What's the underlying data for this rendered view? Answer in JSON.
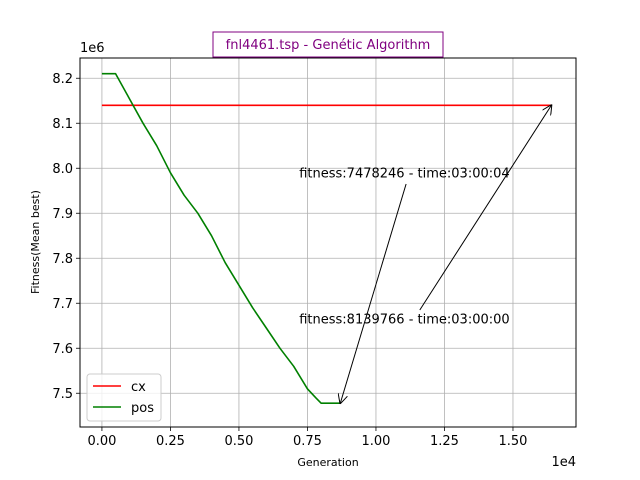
{
  "chart_data": {
    "type": "line",
    "title": "fnl4461.tsp - Genétic Algorithm",
    "title_color": "#800080",
    "xlabel": "Generation",
    "ylabel": "Fitness(Mean best)",
    "x_multiplier_label": "1e4",
    "y_multiplier_label": "1e6",
    "xlim": [
      -0.08,
      1.73
    ],
    "ylim": [
      7.425,
      8.245
    ],
    "x_ticks": [
      0.0,
      0.25,
      0.5,
      0.75,
      1.0,
      1.25,
      1.5
    ],
    "x_tick_labels": [
      "0.00",
      "0.25",
      "0.50",
      "0.75",
      "1.00",
      "1.25",
      "1.50"
    ],
    "y_ticks": [
      7.5,
      7.6,
      7.7,
      7.8,
      7.9,
      8.0,
      8.1,
      8.2
    ],
    "y_tick_labels": [
      "7.5",
      "7.6",
      "7.7",
      "7.8",
      "7.9",
      "8.0",
      "8.1",
      "8.2"
    ],
    "grid": true,
    "legend_position": "lower-left",
    "series": [
      {
        "name": "cx",
        "color": "#ff0000",
        "x": [
          0.0,
          1.64
        ],
        "y": [
          8.1398,
          8.1398
        ]
      },
      {
        "name": "pos",
        "color": "#008000",
        "x": [
          0.0,
          0.05,
          0.1,
          0.15,
          0.2,
          0.25,
          0.3,
          0.35,
          0.4,
          0.45,
          0.5,
          0.55,
          0.6,
          0.65,
          0.7,
          0.75,
          0.78,
          0.8,
          0.87
        ],
        "y": [
          8.21,
          8.21,
          8.155,
          8.1,
          8.05,
          7.99,
          7.94,
          7.9,
          7.85,
          7.79,
          7.74,
          7.69,
          7.645,
          7.6,
          7.56,
          7.51,
          7.49,
          7.478,
          7.478
        ]
      }
    ],
    "annotations": [
      {
        "text": "fitness:7478246 - time:03:00:04",
        "text_at": [
          0.72,
          7.98
        ],
        "arrow_from": [
          1.11,
          7.965
        ],
        "arrow_to": [
          0.87,
          7.478
        ]
      },
      {
        "text": "fitness:8139766 - time:03:00:00",
        "text_at": [
          0.72,
          7.655
        ],
        "arrow_from": [
          1.16,
          7.685
        ],
        "arrow_to": [
          1.64,
          8.1398
        ]
      }
    ]
  }
}
